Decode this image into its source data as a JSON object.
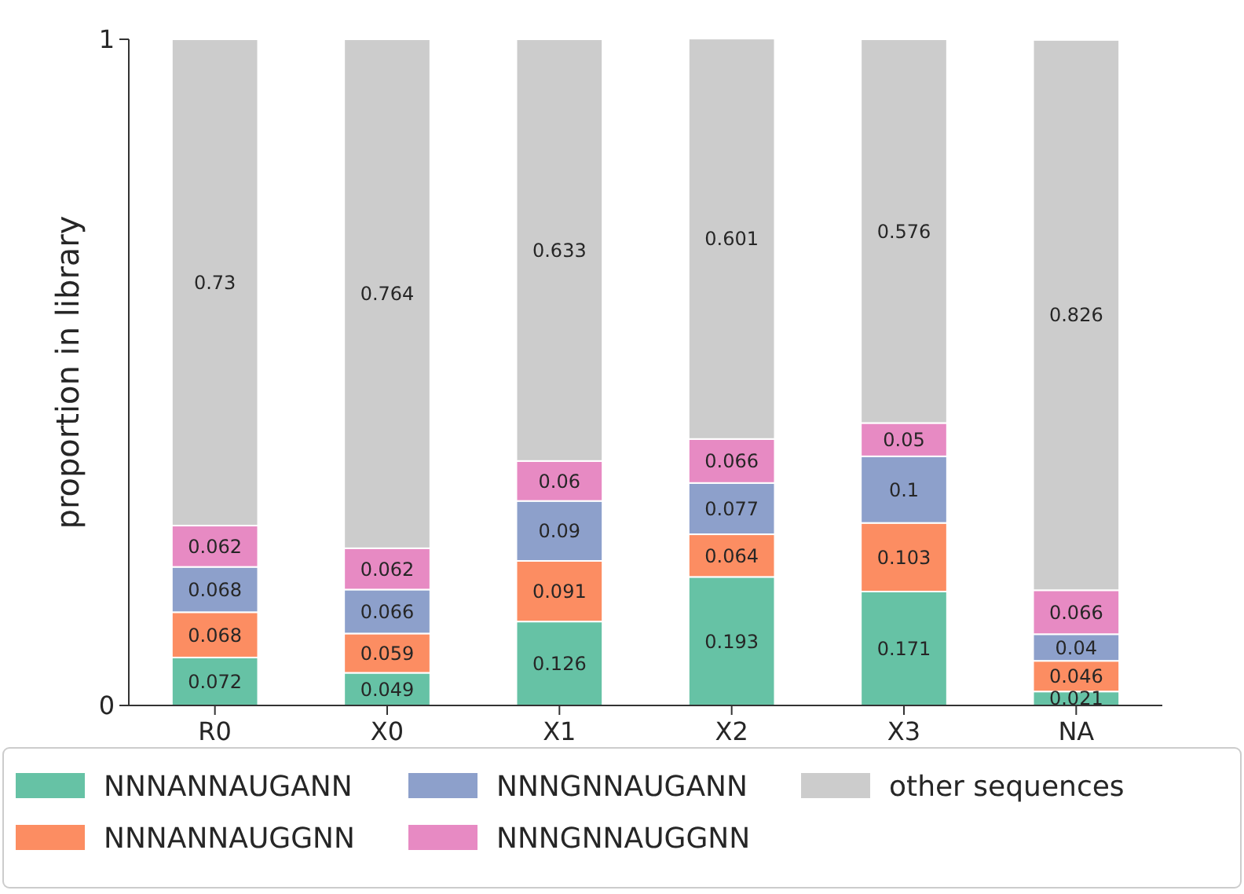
{
  "chart_data": {
    "type": "bar",
    "stacked": true,
    "ylabel": "proportion in library",
    "categories": [
      "R0",
      "X0",
      "X1",
      "X2",
      "X3",
      "NA"
    ],
    "series": [
      {
        "name": "NNNANNAUGANN",
        "color": "#66c2a5",
        "values": [
          0.072,
          0.049,
          0.126,
          0.193,
          0.171,
          0.021
        ]
      },
      {
        "name": "NNNANNAUGGNN",
        "color": "#fc8d62",
        "values": [
          0.068,
          0.059,
          0.091,
          0.064,
          0.103,
          0.046
        ]
      },
      {
        "name": "NNNGNNAUGANN",
        "color": "#8da0cb",
        "values": [
          0.068,
          0.066,
          0.09,
          0.077,
          0.1,
          0.04
        ]
      },
      {
        "name": "NNNGNNAUGGNN",
        "color": "#e78ac3",
        "values": [
          0.062,
          0.062,
          0.06,
          0.066,
          0.05,
          0.066
        ]
      },
      {
        "name": "other sequences",
        "color": "#cccccc",
        "values": [
          0.73,
          0.764,
          0.633,
          0.601,
          0.576,
          0.826
        ]
      }
    ],
    "ylim": [
      0,
      1
    ],
    "yticks": [
      0,
      1
    ],
    "data_labels": true,
    "legend": "bottom",
    "grid": false
  }
}
